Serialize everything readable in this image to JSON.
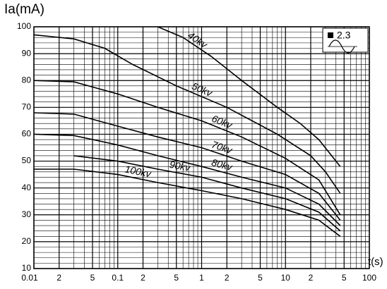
{
  "chart_data": {
    "type": "line",
    "ylabel": "Ia(mA)",
    "xlabel": "t(s)",
    "xscale": "log",
    "xlim": [
      0.01,
      100
    ],
    "ylim": [
      10,
      100
    ],
    "xticks": [
      0.01,
      {
        "value": 0.02,
        "label": "2"
      },
      {
        "value": 0.05,
        "label": "5"
      },
      0.1,
      {
        "value": 0.2,
        "label": "2"
      },
      {
        "value": 0.5,
        "label": "5"
      },
      1,
      {
        "value": 2,
        "label": "2"
      },
      {
        "value": 5,
        "label": "5"
      },
      10,
      {
        "value": 20,
        "label": "2"
      },
      {
        "value": 50,
        "label": "5"
      },
      100
    ],
    "yticks": [
      10,
      20,
      30,
      40,
      50,
      60,
      70,
      80,
      90,
      100
    ],
    "x_minor_grid": [
      0.03,
      0.04,
      0.06,
      0.07,
      0.08,
      0.09,
      0.3,
      0.4,
      0.6,
      0.7,
      0.8,
      0.9,
      3,
      4,
      6,
      7,
      8,
      9,
      30,
      40,
      60,
      70,
      80,
      90
    ],
    "y_minor_grid": [
      12,
      14,
      16,
      18,
      22,
      24,
      26,
      28,
      32,
      34,
      36,
      38,
      42,
      44,
      46,
      48,
      52,
      54,
      56,
      58,
      62,
      64,
      66,
      68,
      72,
      74,
      76,
      78,
      82,
      84,
      86,
      88,
      92,
      94,
      96,
      98
    ],
    "grid": true,
    "legend": {
      "label": "2.3",
      "position": "upper right"
    },
    "series": [
      {
        "name": "40kv",
        "color": "#000000",
        "x": [
          0.3,
          0.6,
          1.3,
          3,
          8,
          15,
          25,
          45
        ],
        "values": [
          100,
          96,
          89,
          80,
          70,
          64,
          58,
          48
        ]
      },
      {
        "name": "50kv",
        "color": "#000000",
        "x": [
          0.01,
          0.03,
          0.07,
          0.15,
          0.5,
          2,
          8,
          20,
          30,
          45
        ],
        "values": [
          97,
          95.5,
          92,
          86,
          78,
          70,
          60,
          52,
          46,
          38
        ]
      },
      {
        "name": "60kv",
        "color": "#000000",
        "x": [
          0.01,
          0.03,
          0.1,
          0.3,
          1,
          3,
          10,
          25,
          45
        ],
        "values": [
          80,
          79.5,
          75,
          70,
          65,
          59,
          51,
          43,
          30
        ]
      },
      {
        "name": "70kv",
        "color": "#000000",
        "x": [
          0.01,
          0.03,
          0.1,
          0.3,
          1,
          3,
          10,
          25,
          45
        ],
        "values": [
          68,
          67.5,
          63,
          59,
          55,
          50,
          45,
          38,
          28
        ]
      },
      {
        "name": "80kv",
        "color": "#000000",
        "x": [
          0.01,
          0.03,
          0.1,
          0.3,
          1,
          3,
          10,
          25,
          45
        ],
        "values": [
          60,
          59.5,
          56,
          52,
          48,
          44,
          40,
          34,
          26
        ]
      },
      {
        "name": "90kv",
        "color": "#000000",
        "x": [
          0.03,
          0.1,
          0.3,
          1,
          3,
          10,
          25,
          45
        ],
        "values": [
          52,
          50,
          47,
          44,
          40,
          36,
          31,
          24
        ]
      },
      {
        "name": "100kv",
        "color": "#000000",
        "x": [
          0.01,
          0.03,
          0.1,
          0.3,
          1,
          3,
          10,
          25,
          45
        ],
        "values": [
          47,
          47,
          45,
          42,
          39,
          36,
          32,
          28,
          22
        ]
      }
    ]
  }
}
